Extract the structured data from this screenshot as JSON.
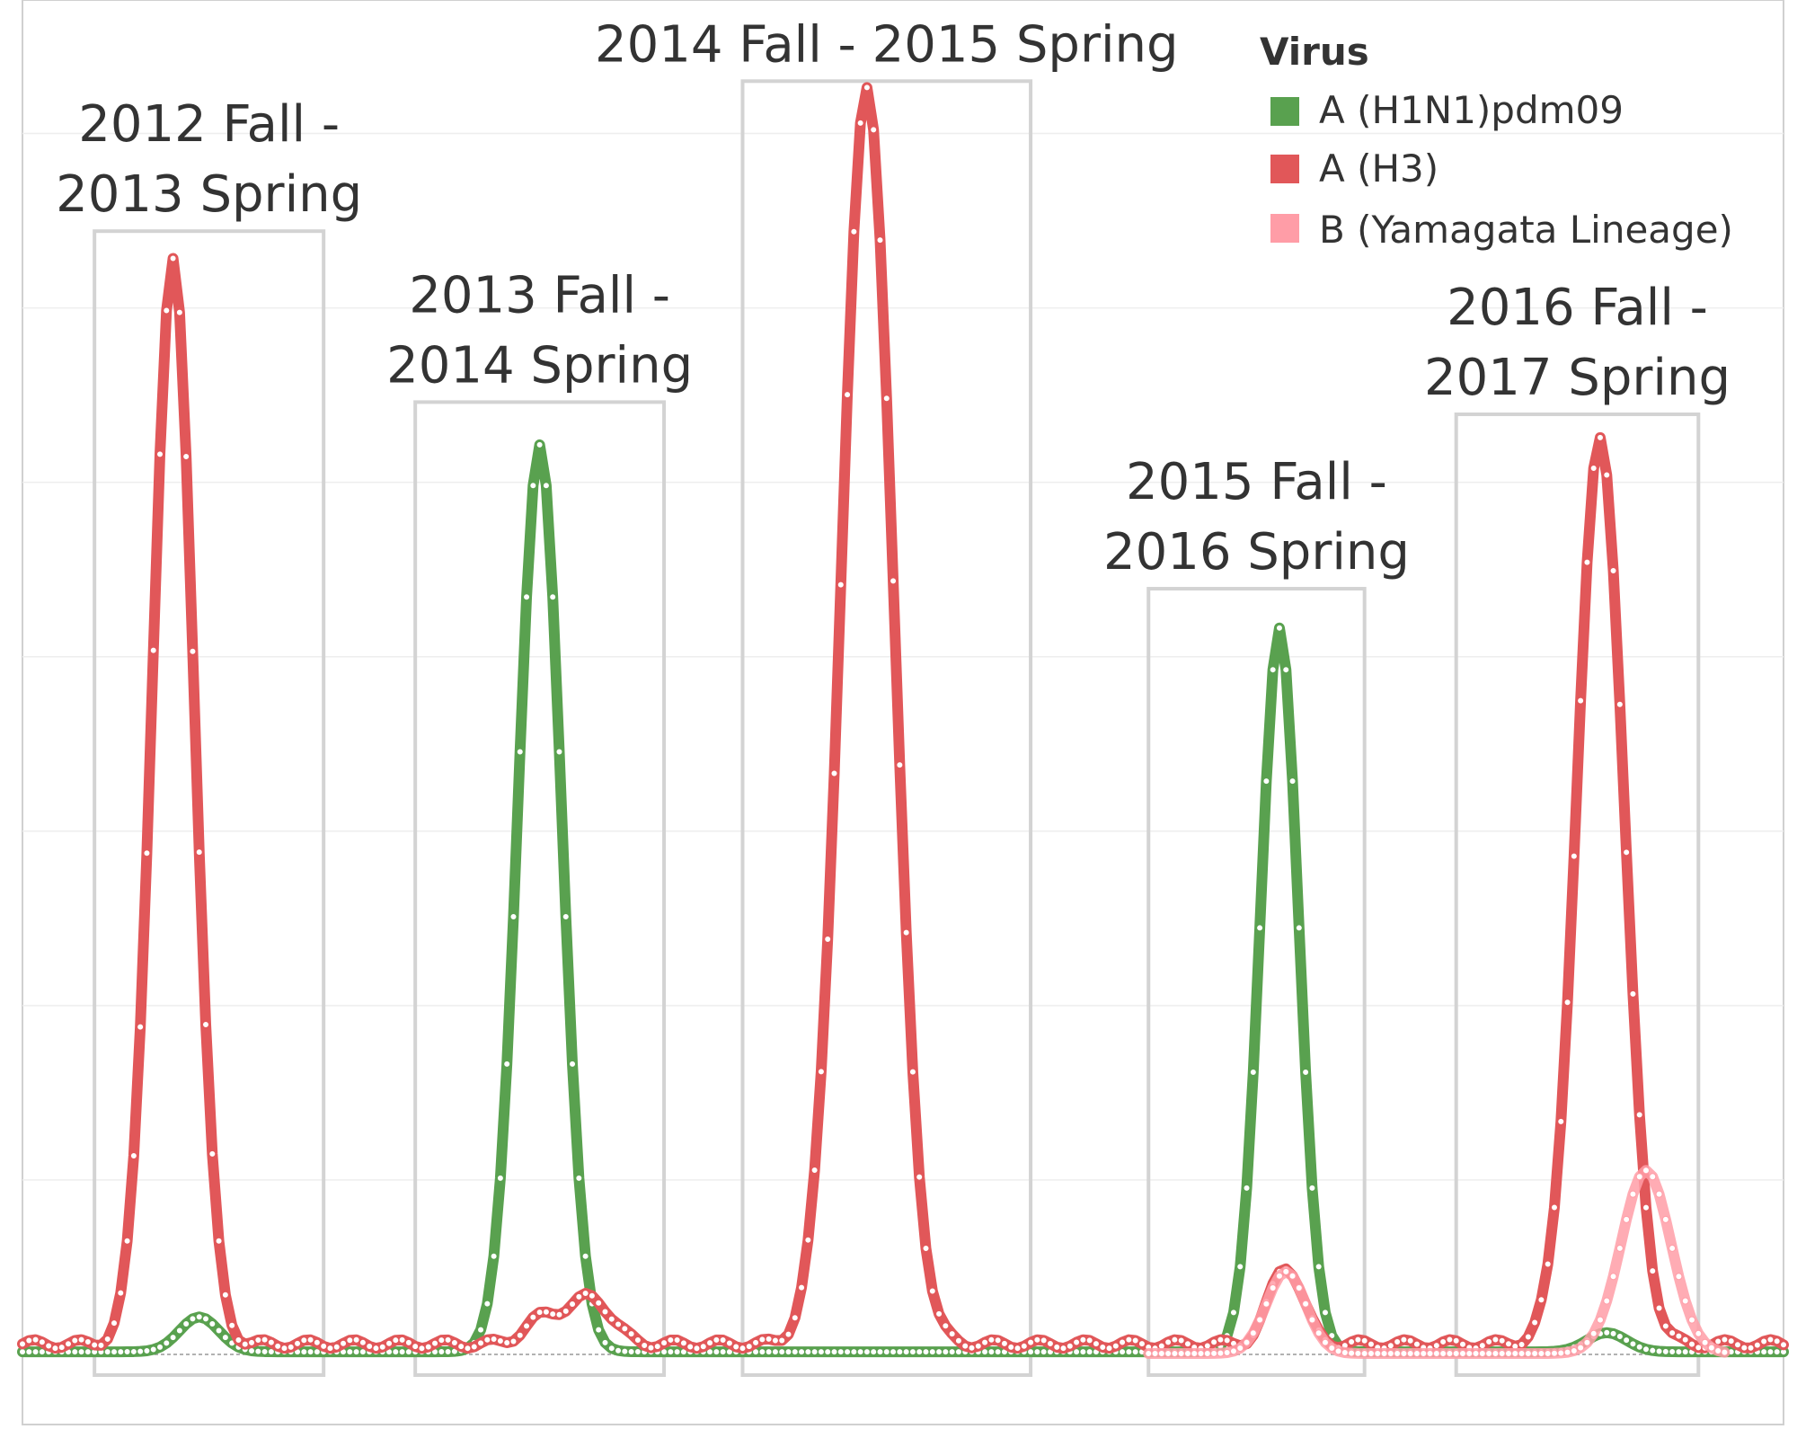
{
  "chart_data": {
    "type": "line",
    "title": "",
    "xlabel": "",
    "ylabel": "",
    "x_range_weeks": [
      0,
      269
    ],
    "ylim": [
      0,
      7250
    ],
    "grid": true,
    "legend_position": "top-right",
    "legend": {
      "title": "Virus",
      "items": [
        {
          "name": "A (H1N1)pdm09",
          "color": "#59a14f"
        },
        {
          "name": "A (H3)",
          "color": "#e15759"
        },
        {
          "name": "B (Yamagata Lineage)",
          "color": "#ff9da7"
        }
      ]
    },
    "seasons": [
      {
        "label_lines": [
          "2012 Fall -",
          "2013 Spring"
        ],
        "start": 11,
        "end": 46,
        "ymax": 6440
      },
      {
        "label_lines": [
          "2013 Fall -",
          "2014 Spring"
        ],
        "start": 60,
        "end": 98,
        "ymax": 5460
      },
      {
        "label_lines": [
          "2014 Fall - 2015 Spring"
        ],
        "start": 110,
        "end": 154,
        "ymax": 7300
      },
      {
        "label_lines": [
          "2015 Fall -",
          "2016 Spring"
        ],
        "start": 172,
        "end": 205,
        "ymax": 4390
      },
      {
        "label_lines": [
          "2016 Fall -",
          "2017 Spring"
        ],
        "start": 219,
        "end": 256,
        "ymax": 5390
      }
    ],
    "series": [
      {
        "name": "A (H3)",
        "color": "#e15759",
        "peaks": [
          {
            "center": 23,
            "height": 6200,
            "sigma": 3.2
          },
          {
            "center": 129,
            "height": 7200,
            "sigma": 4.0
          },
          {
            "center": 241,
            "height": 5200,
            "sigma": 3.6
          },
          {
            "center": 87,
            "height": 260,
            "sigma": 3.0
          },
          {
            "center": 193,
            "height": 450,
            "sigma": 2.5
          },
          {
            "center": 80,
            "height": 160,
            "sigma": 3.0
          }
        ],
        "baseline": 60
      },
      {
        "name": "A (H1N1)pdm09",
        "color": "#59a14f",
        "peaks": [
          {
            "center": 79,
            "height": 5200,
            "sigma": 3.3
          },
          {
            "center": 192,
            "height": 4150,
            "sigma": 2.9
          },
          {
            "center": 27,
            "height": 200,
            "sigma": 3.0
          },
          {
            "center": 242,
            "height": 110,
            "sigma": 3.0
          }
        ],
        "baseline": 15
      },
      {
        "name": "B (Yamagata Lineage)",
        "color": "#ff9da7",
        "peaks": [
          {
            "center": 193,
            "height": 470,
            "sigma": 3.0
          },
          {
            "center": 248,
            "height": 1050,
            "sigma": 3.8
          }
        ],
        "baseline": 5,
        "range": [
          172,
          260
        ]
      }
    ]
  }
}
